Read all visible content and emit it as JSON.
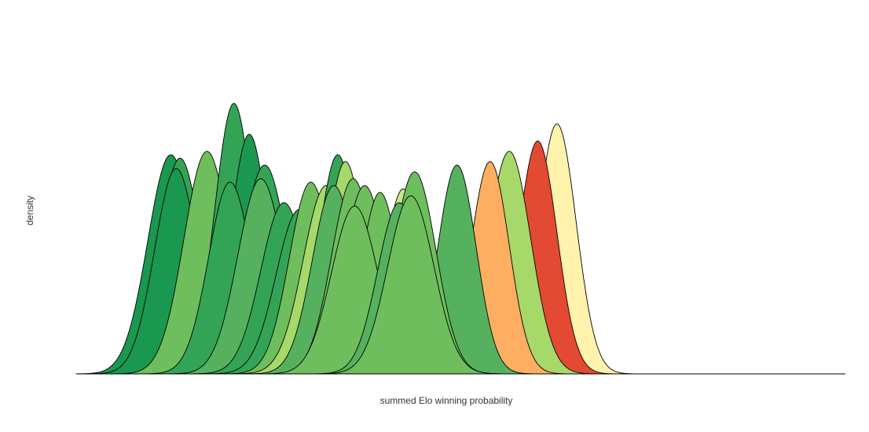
{
  "chart_data": {
    "type": "area",
    "title": "",
    "xlabel": "summed Elo winning probability",
    "ylabel": "density",
    "xlim": [
      0,
      1
    ],
    "ylim": [
      0,
      1
    ],
    "grid": false,
    "legend": "none",
    "axis_ticks": false,
    "series": [
      {
        "peak": 0.625,
        "height": 0.73,
        "sd": 0.025,
        "color": "#fff2ad"
      },
      {
        "peak": 0.6,
        "height": 0.68,
        "sd": 0.025,
        "color": "#e34a33"
      },
      {
        "peak": 0.563,
        "height": 0.65,
        "sd": 0.028,
        "color": "#a6d96a"
      },
      {
        "peak": 0.538,
        "height": 0.62,
        "sd": 0.025,
        "color": "#fdae61"
      },
      {
        "peak": 0.495,
        "height": 0.61,
        "sd": 0.025,
        "color": "#55b15e"
      },
      {
        "peak": 0.123,
        "height": 0.64,
        "sd": 0.03,
        "color": "#1a9850"
      },
      {
        "peak": 0.135,
        "height": 0.63,
        "sd": 0.028,
        "color": "#33a456"
      },
      {
        "peak": 0.13,
        "height": 0.6,
        "sd": 0.028,
        "color": "#1a9850"
      },
      {
        "peak": 0.17,
        "height": 0.65,
        "sd": 0.03,
        "color": "#6fbe5d"
      },
      {
        "peak": 0.205,
        "height": 0.79,
        "sd": 0.025,
        "color": "#33a456"
      },
      {
        "peak": 0.225,
        "height": 0.7,
        "sd": 0.025,
        "color": "#1a9850"
      },
      {
        "peak": 0.2,
        "height": 0.56,
        "sd": 0.028,
        "color": "#33a456"
      },
      {
        "peak": 0.245,
        "height": 0.61,
        "sd": 0.03,
        "color": "#33a456"
      },
      {
        "peak": 0.24,
        "height": 0.57,
        "sd": 0.03,
        "color": "#55b15e"
      },
      {
        "peak": 0.27,
        "height": 0.5,
        "sd": 0.03,
        "color": "#33a456"
      },
      {
        "peak": 0.29,
        "height": 0.48,
        "sd": 0.03,
        "color": "#33a456"
      },
      {
        "peak": 0.305,
        "height": 0.56,
        "sd": 0.028,
        "color": "#6fbe5d"
      },
      {
        "peak": 0.325,
        "height": 0.55,
        "sd": 0.03,
        "color": "#a6d96a"
      },
      {
        "peak": 0.34,
        "height": 0.64,
        "sd": 0.025,
        "color": "#33a456"
      },
      {
        "peak": 0.35,
        "height": 0.62,
        "sd": 0.025,
        "color": "#a6d96a"
      },
      {
        "peak": 0.335,
        "height": 0.55,
        "sd": 0.028,
        "color": "#55b15e"
      },
      {
        "peak": 0.36,
        "height": 0.57,
        "sd": 0.028,
        "color": "#6fbe5d"
      },
      {
        "peak": 0.375,
        "height": 0.55,
        "sd": 0.028,
        "color": "#6fbe5d"
      },
      {
        "peak": 0.395,
        "height": 0.53,
        "sd": 0.025,
        "color": "#6fbe5d"
      },
      {
        "peak": 0.425,
        "height": 0.54,
        "sd": 0.025,
        "color": "#c7e88a"
      },
      {
        "peak": 0.362,
        "height": 0.49,
        "sd": 0.03,
        "color": "#6fbe5d"
      },
      {
        "peak": 0.44,
        "height": 0.59,
        "sd": 0.028,
        "color": "#6fbe5d"
      },
      {
        "peak": 0.42,
        "height": 0.5,
        "sd": 0.028,
        "color": "#55b15e"
      },
      {
        "peak": 0.435,
        "height": 0.52,
        "sd": 0.03,
        "color": "#6fbe5d"
      }
    ]
  }
}
